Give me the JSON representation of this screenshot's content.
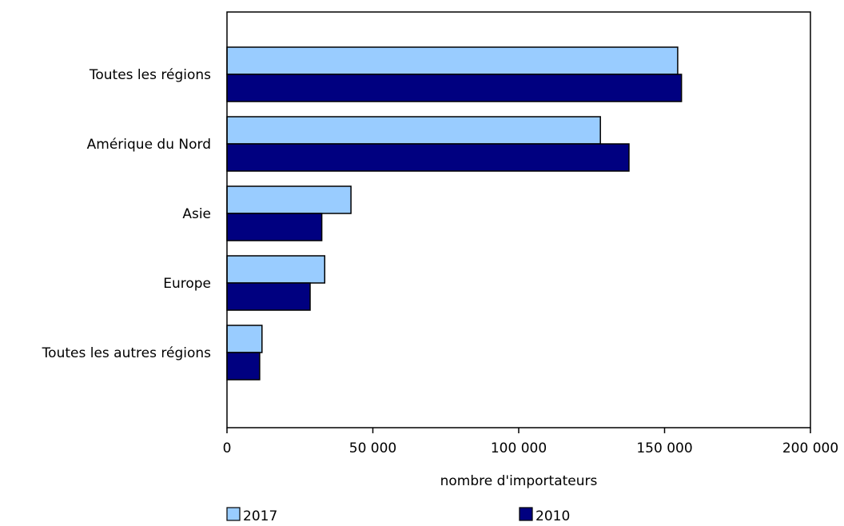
{
  "chart_data": {
    "type": "bar",
    "orientation": "horizontal",
    "categories": [
      "Toutes les régions",
      "Amérique du Nord",
      "Asie",
      "Europe",
      "Toutes les autres régions"
    ],
    "series": [
      {
        "name": "2017",
        "values": [
          154500,
          128000,
          42500,
          33500,
          12000
        ],
        "color": "#99ccff"
      },
      {
        "name": "2010",
        "values": [
          155800,
          137800,
          32500,
          28500,
          11200
        ],
        "color": "#000080"
      }
    ],
    "xlabel": "nombre d'importateurs",
    "xlim": [
      0,
      200000
    ],
    "xticks": [
      0,
      50000,
      100000,
      150000,
      200000
    ],
    "xtick_labels": [
      "0",
      "50 000",
      "100 000",
      "150 000",
      "200 000"
    ],
    "grid": false,
    "legend_position": "bottom"
  }
}
